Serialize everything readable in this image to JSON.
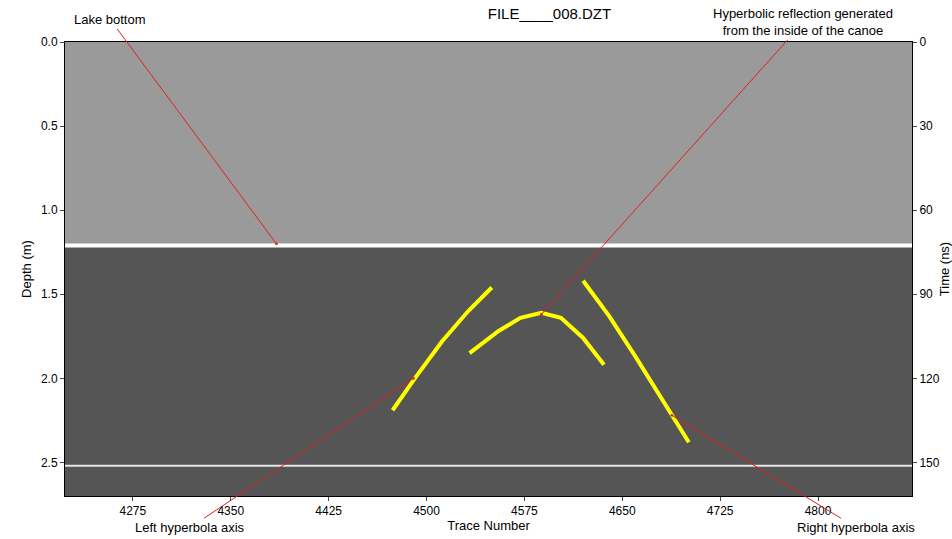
{
  "chart_data": {
    "type": "line",
    "title": "FILE____008.DZT",
    "x_label": "Trace Number",
    "y_label": "Depth (m)",
    "y2_label": "Time (ns)",
    "xlim": [
      4223,
      4872
    ],
    "xticks": [
      4275,
      4350,
      4425,
      4500,
      4575,
      4650,
      4725,
      4800
    ],
    "ylim": [
      2.7,
      0
    ],
    "yticks": [
      {
        "value": 0,
        "label": "0.0"
      },
      0.5,
      {
        "value": 1,
        "label": "1.0"
      },
      1.5,
      {
        "value": 2,
        "label": "2.0"
      },
      2.5
    ],
    "y2lim": [
      162,
      0
    ],
    "y2ticks": [
      0,
      30,
      60,
      90,
      120,
      150
    ],
    "grid": false,
    "series": [
      {
        "x": [
          4223,
          4872
        ],
        "values": [
          1.21,
          1.21
        ],
        "color": "#ffffff",
        "line_style": "solid"
      },
      {
        "x": [
          4223,
          4872
        ],
        "values": [
          2.52,
          2.52
        ],
        "color": "#e6e6e6",
        "line_style": "solid"
      },
      {
        "x": [
          4474,
          4492,
          4512,
          4532,
          4550
        ],
        "values": [
          2.19,
          1.99,
          1.78,
          1.6,
          1.46
        ],
        "color": "#ffff00",
        "line_style": "solid"
      },
      {
        "x": [
          4533,
          4555,
          4572,
          4588,
          4603,
          4620,
          4636
        ],
        "values": [
          1.85,
          1.72,
          1.64,
          1.61,
          1.64,
          1.76,
          1.92
        ],
        "color": "#ffff00",
        "line_style": "solid"
      },
      {
        "x": [
          4620,
          4640,
          4660,
          4680,
          4701
        ],
        "values": [
          1.42,
          1.63,
          1.87,
          2.12,
          2.38
        ],
        "color": "#ffff00",
        "line_style": "solid"
      }
    ],
    "annotations": [
      {
        "text": "Lake bottom",
        "x": 4385,
        "y": 1.2
      },
      {
        "text": [
          "Hyperbolic reflection generated",
          "from the inside of the canoe"
        ],
        "x": 4588,
        "y": 1.62
      },
      {
        "text": "Left hyperbola axis",
        "x": 4490,
        "y": 2.0
      },
      {
        "text": "Right hyperbola axis",
        "x": 4688,
        "y": 2.22
      }
    ]
  }
}
